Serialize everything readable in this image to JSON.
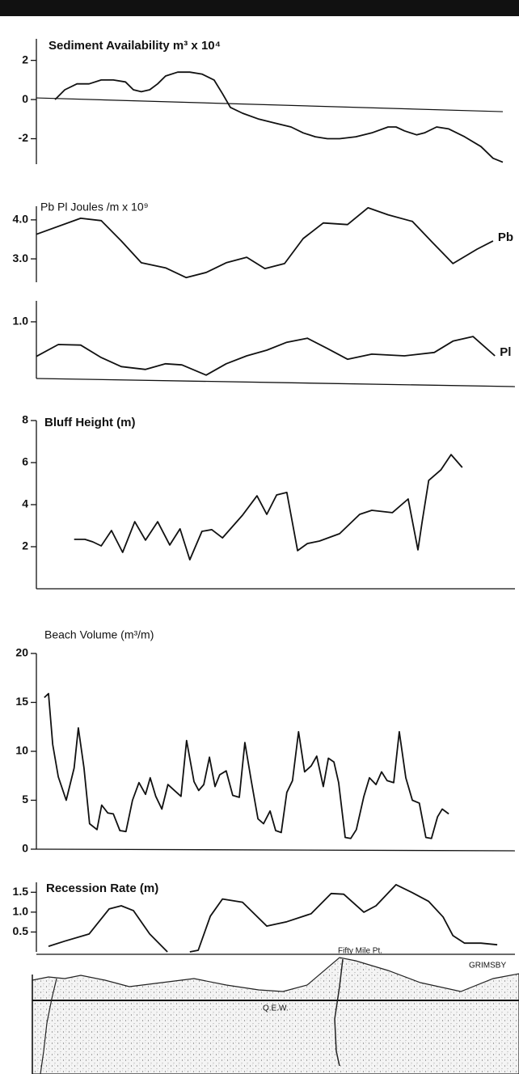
{
  "chart_data": [
    {
      "type": "line",
      "title": "Sediment Availability m³ x 10⁴",
      "xlim": [
        0,
        100
      ],
      "ylim": [
        -3.3,
        3.1
      ],
      "yticks": [
        2,
        0,
        -2
      ],
      "series": [
        {
          "color": "#111111",
          "x": [
            4.0,
            6.1,
            8.7,
            11.3,
            13.9,
            16.5,
            19.1,
            20.8,
            22.5,
            24.3,
            26.0,
            27.7,
            30.3,
            32.9,
            35.5,
            38.1,
            39.9,
            41.6,
            44.2,
            47.7,
            51.1,
            54.6,
            57.2,
            59.8,
            62.4,
            65.0,
            68.5,
            71.9,
            75.4,
            77.1,
            78.9,
            81.5,
            83.2,
            85.8,
            88.4,
            91.8,
            95.3,
            97.9,
            100
          ],
          "values": [
            0.0,
            0.5,
            0.8,
            0.8,
            1.0,
            1.0,
            0.9,
            0.5,
            0.4,
            0.5,
            0.8,
            1.2,
            1.4,
            1.4,
            1.3,
            1.0,
            0.3,
            -0.4,
            -0.7,
            -1.0,
            -1.2,
            -1.4,
            -1.7,
            -1.9,
            -2.0,
            -2.0,
            -1.9,
            -1.7,
            -1.4,
            -1.4,
            -1.6,
            -1.8,
            -1.7,
            -1.4,
            -1.5,
            -1.9,
            -2.4,
            -3.0,
            -3.2
          ]
        }
      ]
    },
    {
      "type": "line",
      "title": "Pb Pl Joules /m x 10⁹",
      "xlim": [
        0,
        100
      ],
      "ylim": [
        2.4,
        4.35
      ],
      "yticks": [
        {
          "value": 4,
          "label": "4.0"
        },
        {
          "value": 3,
          "label": "3.0"
        }
      ],
      "series": [
        {
          "name": "Pb",
          "color": "#111111",
          "x": [
            0,
            9.5,
            13.9,
            18.2,
            22.5,
            27.7,
            32.1,
            36.4,
            40.7,
            45.1,
            49.0,
            53.2,
            57.2,
            61.5,
            66.7,
            71.1,
            75.4,
            80.6,
            84.9,
            89.3,
            94.5,
            97.9
          ],
          "values": [
            3.63,
            4.04,
            3.98,
            3.46,
            2.9,
            2.77,
            2.52,
            2.65,
            2.9,
            3.04,
            2.75,
            2.88,
            3.52,
            3.92,
            3.88,
            4.31,
            4.13,
            3.96,
            3.42,
            2.88,
            3.25,
            3.46
          ]
        }
      ]
    },
    {
      "type": "line",
      "xlim": [
        0,
        100
      ],
      "ylim": [
        0,
        1.37
      ],
      "yticks": [
        {
          "value": 1,
          "label": "1.0"
        }
      ],
      "series": [
        {
          "name": "Pl",
          "color": "#111111",
          "x": [
            0,
            4.7,
            9.5,
            13.9,
            18.2,
            23.4,
            27.7,
            31.2,
            36.4,
            40.7,
            45.1,
            49.4,
            53.7,
            58.1,
            62.4,
            66.7,
            71.9,
            78.9,
            85.3,
            89.3,
            93.6,
            98.3
          ],
          "values": [
            0.39,
            0.6,
            0.59,
            0.37,
            0.21,
            0.16,
            0.26,
            0.24,
            0.06,
            0.26,
            0.4,
            0.5,
            0.64,
            0.71,
            0.53,
            0.34,
            0.43,
            0.4,
            0.46,
            0.66,
            0.74,
            0.4
          ]
        }
      ]
    },
    {
      "type": "line",
      "title": "Bluff Height (m)",
      "xlim": [
        0,
        100
      ],
      "ylim": [
        0,
        8
      ],
      "yticks": [
        8,
        6,
        4,
        2
      ],
      "series": [
        {
          "color": "#111111",
          "x": [
            8.1,
            10.4,
            12.1,
            13.9,
            16.1,
            18.5,
            21.1,
            23.4,
            26.0,
            28.6,
            30.8,
            32.9,
            35.5,
            37.6,
            39.9,
            44.2,
            47.3,
            49.4,
            51.5,
            53.7,
            56.0,
            58.1,
            60.7,
            65.0,
            69.3,
            71.9,
            76.3,
            79.7,
            81.8,
            82.7,
            84.1,
            86.7,
            88.9,
            91.3
          ],
          "values": [
            2.35,
            2.35,
            2.23,
            2.04,
            2.77,
            1.73,
            3.19,
            2.31,
            3.19,
            2.08,
            2.85,
            1.38,
            2.73,
            2.81,
            2.42,
            3.5,
            4.42,
            3.54,
            4.46,
            4.58,
            1.81,
            2.15,
            2.27,
            2.62,
            3.54,
            3.73,
            3.62,
            4.27,
            1.85,
            3.19,
            5.15,
            5.65,
            6.38,
            5.77
          ]
        }
      ]
    },
    {
      "type": "line",
      "title": "Beach Volume (m³/m)",
      "xlim": [
        0,
        100
      ],
      "ylim": [
        0,
        20
      ],
      "yticks": [
        20,
        15,
        10,
        5,
        0
      ],
      "series": [
        {
          "color": "#111111",
          "x": [
            1.7,
            2.6,
            3.5,
            4.7,
            6.4,
            8.1,
            9.0,
            10.2,
            11.4,
            13.0,
            14.0,
            15.3,
            16.5,
            17.9,
            19.2,
            20.6,
            22.0,
            23.4,
            24.4,
            25.6,
            26.9,
            28.2,
            29.6,
            31.0,
            32.2,
            33.8,
            34.8,
            35.9,
            37.1,
            38.3,
            39.3,
            40.7,
            42.1,
            43.5,
            44.7,
            46.1,
            47.5,
            48.7,
            50.1,
            51.3,
            52.5,
            53.7,
            54.9,
            56.2,
            57.5,
            58.9,
            60.1,
            61.5,
            62.6,
            63.8,
            64.8,
            66.2,
            67.4,
            68.6,
            70.2,
            71.4,
            72.8,
            74.0,
            75.2,
            76.6,
            77.8,
            79.2,
            80.6,
            82.1,
            83.5,
            84.7,
            86.0,
            87.0,
            88.4
          ],
          "values": [
            15.5,
            15.9,
            10.7,
            7.4,
            5.0,
            8.3,
            12.4,
            8.3,
            2.6,
            2.0,
            4.5,
            3.7,
            3.6,
            1.9,
            1.8,
            5.0,
            6.8,
            5.6,
            7.3,
            5.4,
            4.1,
            6.6,
            6.0,
            5.4,
            11.1,
            6.9,
            6.0,
            6.6,
            9.4,
            6.4,
            7.6,
            8.0,
            5.5,
            5.3,
            10.9,
            6.9,
            3.1,
            2.6,
            3.9,
            1.9,
            1.7,
            5.8,
            7.0,
            12.0,
            7.9,
            8.5,
            9.5,
            6.4,
            9.3,
            8.9,
            6.8,
            1.2,
            1.1,
            2.0,
            5.4,
            7.3,
            6.6,
            7.9,
            7.0,
            6.8,
            12.0,
            7.3,
            5.0,
            4.7,
            1.2,
            1.1,
            3.3,
            4.1,
            3.6
          ]
        }
      ]
    },
    {
      "type": "line",
      "title": "Recession Rate (m)",
      "xlim": [
        0,
        100
      ],
      "ylim": [
        0,
        1.75
      ],
      "yticks": [
        1.5,
        {
          "value": 1,
          "label": "1.0"
        },
        0.5
      ],
      "series": [
        {
          "color": "#111111",
          "x": [
            2.6,
            6.1,
            11.3,
            15.6,
            18.2,
            20.8,
            24.3,
            28.1,
            30.0,
            32.9,
            34.7,
            37.3,
            39.9,
            44.2,
            49.4,
            53.7,
            58.9,
            63.2,
            65.9,
            70.2,
            72.8,
            77.1,
            80.6,
            84.1,
            87.2,
            89.3,
            91.8,
            95.3,
            98.8
          ],
          "values": [
            0.14,
            0.27,
            0.45,
            1.08,
            1.16,
            1.04,
            0.45,
            0,
            null,
            0,
            0.04,
            0.9,
            1.33,
            1.25,
            0.65,
            0.76,
            0.96,
            1.47,
            1.45,
            1.0,
            1.16,
            1.69,
            1.49,
            1.27,
            0.88,
            0.41,
            0.22,
            0.22,
            0.18
          ]
        }
      ]
    }
  ],
  "profile": {
    "labels": [
      "Fifty Mile Pt.",
      "GRIMSBY",
      "Q.E.W."
    ]
  }
}
